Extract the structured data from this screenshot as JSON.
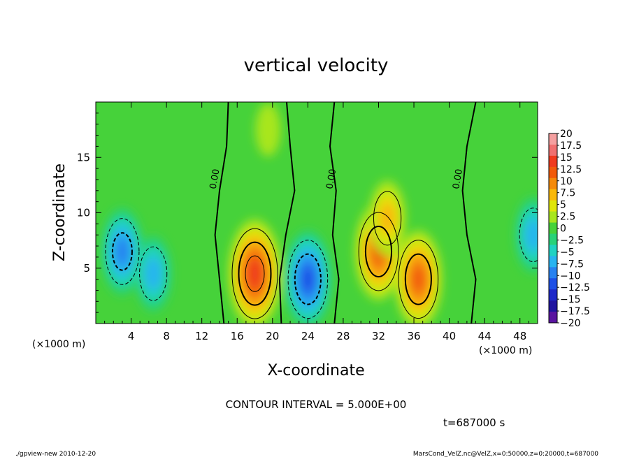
{
  "chart_data": {
    "type": "heatmap",
    "title": "vertical velocity",
    "xlabel": "X-coordinate",
    "ylabel": "Z-coordinate",
    "x_unit": "(×1000 m)",
    "y_unit": "(×1000 m)",
    "xlim": [
      0,
      50
    ],
    "ylim": [
      0,
      20
    ],
    "x_ticks": [
      4,
      8,
      12,
      16,
      20,
      24,
      28,
      32,
      36,
      40,
      44,
      48
    ],
    "y_ticks": [
      5,
      10,
      15
    ],
    "contour_label": "0.00",
    "contour_interval_text": "CONTOUR INTERVAL = 5.000E+00",
    "time_text": "t=687000 s",
    "colorbar": {
      "levels": [
        20,
        17.5,
        15,
        12.5,
        10,
        7.5,
        5,
        2.5,
        0,
        -2.5,
        -5,
        -7.5,
        -10,
        -12.5,
        -15,
        -17.5,
        -20
      ],
      "labels": [
        "20",
        "17.5",
        "15",
        "12.5",
        "10",
        "7.5",
        "5",
        "2.5",
        "0",
        "−2.5",
        "−5",
        "−7.5",
        "−10",
        "−12.5",
        "−15",
        "−17.5",
        "−20"
      ],
      "colors": [
        "#f5a0a0",
        "#f07070",
        "#f03a1e",
        "#f25a0a",
        "#f58a0a",
        "#f9b80a",
        "#e0e60a",
        "#a8e61e",
        "#46d23a",
        "#28d278",
        "#20d2c2",
        "#28b4f0",
        "#2882f0",
        "#1e50e6",
        "#1e28c8",
        "#2014a0",
        "#5a14a0"
      ]
    },
    "features": [
      {
        "name": "updraft",
        "x": 18,
        "z": 4.5,
        "w": 15
      },
      {
        "name": "updraft",
        "x": 32,
        "z": 6.5,
        "w": 12.5
      },
      {
        "name": "updraft",
        "x": 36.5,
        "z": 4.0,
        "w": 12.5
      },
      {
        "name": "updraft",
        "x": 33,
        "z": 9.5,
        "w": 7.5
      },
      {
        "name": "downdraft",
        "x": 24,
        "z": 4.0,
        "w": -12.5
      },
      {
        "name": "downdraft",
        "x": 3,
        "z": 6.5,
        "w": -10
      },
      {
        "name": "downdraft",
        "x": 6.5,
        "z": 4.5,
        "w": -7.5
      },
      {
        "name": "downdraft",
        "x": 49.5,
        "z": 8.0,
        "w": -7.5
      },
      {
        "name": "updraft",
        "x": 19.5,
        "z": 17.5,
        "w": 2.5
      }
    ]
  },
  "footer": {
    "left": "./gpview-new   2010-12-20",
    "right": "MarsCond_VelZ.nc@VelZ,x=0:50000,z=0:20000,t=687000"
  }
}
